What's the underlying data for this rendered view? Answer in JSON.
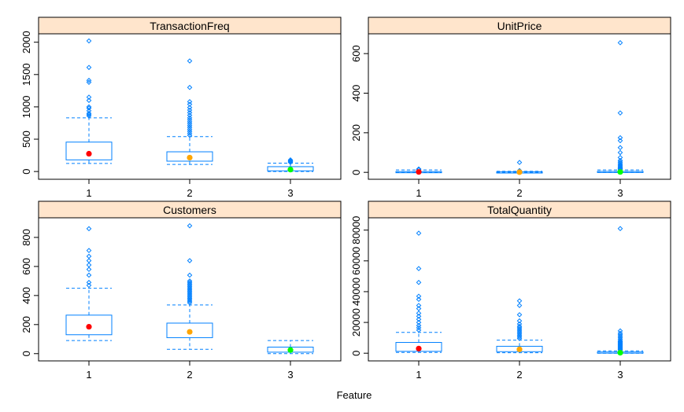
{
  "xlabel": "Feature",
  "colors": {
    "box": "#0080ff",
    "strip": "#ffe5cc",
    "median_dots": [
      "#ff0000",
      "#ffa500",
      "#00ff00"
    ]
  },
  "chart_data": [
    {
      "type": "boxplot",
      "title": "TransactionFreq",
      "categories": [
        "1",
        "2",
        "3"
      ],
      "ylim": [
        -120,
        2130
      ],
      "yticks": [
        0,
        500,
        1000,
        1500,
        2000
      ],
      "ytick_labels": [
        "0",
        "500",
        "1000",
        "1500",
        "2000"
      ],
      "boxes": [
        {
          "category": "1",
          "lower_whisker": 125,
          "q1": 180,
          "median": 275,
          "q3": 455,
          "upper_whisker": 830,
          "outliers": [
            860,
            880,
            900,
            940,
            980,
            1000,
            1100,
            1150,
            1380,
            1410,
            1610,
            2020
          ]
        },
        {
          "category": "2",
          "lower_whisker": 110,
          "q1": 160,
          "median": 215,
          "q3": 305,
          "upper_whisker": 540,
          "outliers": [
            560,
            590,
            620,
            650,
            680,
            710,
            740,
            770,
            800,
            830,
            870,
            910,
            950,
            990,
            1040,
            1080,
            1300,
            1710
          ]
        },
        {
          "category": "3",
          "lower_whisker": 0,
          "q1": 10,
          "median": 30,
          "q3": 75,
          "upper_whisker": 130,
          "outliers": [
            140,
            150,
            160,
            170,
            180
          ]
        }
      ]
    },
    {
      "type": "boxplot",
      "title": "UnitPrice",
      "categories": [
        "1",
        "2",
        "3"
      ],
      "ylim": [
        -35,
        700
      ],
      "yticks": [
        0,
        200,
        400,
        600
      ],
      "ytick_labels": [
        "0",
        "200",
        "400",
        "600"
      ],
      "boxes": [
        {
          "category": "1",
          "lower_whisker": 0,
          "q1": 1,
          "median": 2,
          "q3": 4,
          "upper_whisker": 12,
          "outliers": [
            13,
            15,
            17
          ]
        },
        {
          "category": "2",
          "lower_whisker": 0,
          "q1": 0.5,
          "median": 1,
          "q3": 2.5,
          "upper_whisker": 5,
          "outliers": [
            7,
            9,
            50
          ]
        },
        {
          "category": "3",
          "lower_whisker": 0,
          "q1": 1,
          "median": 2,
          "q3": 5,
          "upper_whisker": 12,
          "outliers": [
            14,
            17,
            20,
            24,
            28,
            33,
            38,
            45,
            52,
            60,
            75,
            100,
            125,
            160,
            175,
            300,
            655
          ]
        }
      ]
    },
    {
      "type": "boxplot",
      "title": "Customers",
      "categories": [
        "1",
        "2",
        "3"
      ],
      "ylim": [
        -50,
        935
      ],
      "yticks": [
        0,
        200,
        400,
        600,
        800
      ],
      "ytick_labels": [
        "0",
        "200",
        "400",
        "600",
        "800"
      ],
      "boxes": [
        {
          "category": "1",
          "lower_whisker": 90,
          "q1": 130,
          "median": 185,
          "q3": 265,
          "upper_whisker": 450,
          "outliers": [
            470,
            490,
            540,
            580,
            610,
            640,
            670,
            710,
            860
          ]
        },
        {
          "category": "2",
          "lower_whisker": 30,
          "q1": 110,
          "median": 150,
          "q3": 210,
          "upper_whisker": 335,
          "outliers": [
            350,
            360,
            370,
            380,
            390,
            400,
            410,
            420,
            430,
            440,
            450,
            460,
            470,
            480,
            490,
            500,
            540,
            640,
            880
          ]
        },
        {
          "category": "3",
          "lower_whisker": 0,
          "q1": 10,
          "median": 25,
          "q3": 45,
          "upper_whisker": 90,
          "outliers": []
        }
      ]
    },
    {
      "type": "boxplot",
      "title": "TotalQuantity",
      "categories": [
        "1",
        "2",
        "3"
      ],
      "ylim": [
        -5000,
        88000
      ],
      "yticks": [
        0,
        20000,
        40000,
        60000,
        80000
      ],
      "ytick_labels": [
        "0",
        "20000",
        "40000",
        "60000",
        "80000"
      ],
      "boxes": [
        {
          "category": "1",
          "lower_whisker": 500,
          "q1": 1200,
          "median": 3000,
          "q3": 7000,
          "upper_whisker": 13500,
          "outliers": [
            15000,
            16500,
            18000,
            20000,
            22000,
            24000,
            26000,
            29000,
            31000,
            35000,
            37000,
            46000,
            55000,
            78000
          ]
        },
        {
          "category": "2",
          "lower_whisker": 300,
          "q1": 1000,
          "median": 2500,
          "q3": 4500,
          "upper_whisker": 8500,
          "outliers": [
            9500,
            10500,
            11500,
            12500,
            13500,
            14500,
            15500,
            16500,
            17500,
            19000,
            21000,
            25000,
            31000,
            34000
          ]
        },
        {
          "category": "3",
          "lower_whisker": 0,
          "q1": 100,
          "median": 300,
          "q3": 800,
          "upper_whisker": 1500,
          "outliers": [
            2000,
            2500,
            3000,
            3500,
            4000,
            4500,
            5000,
            5500,
            6000,
            6500,
            7000,
            7500,
            8000,
            9000,
            10000,
            11000,
            12000,
            13000,
            14500,
            81000
          ]
        }
      ]
    }
  ]
}
